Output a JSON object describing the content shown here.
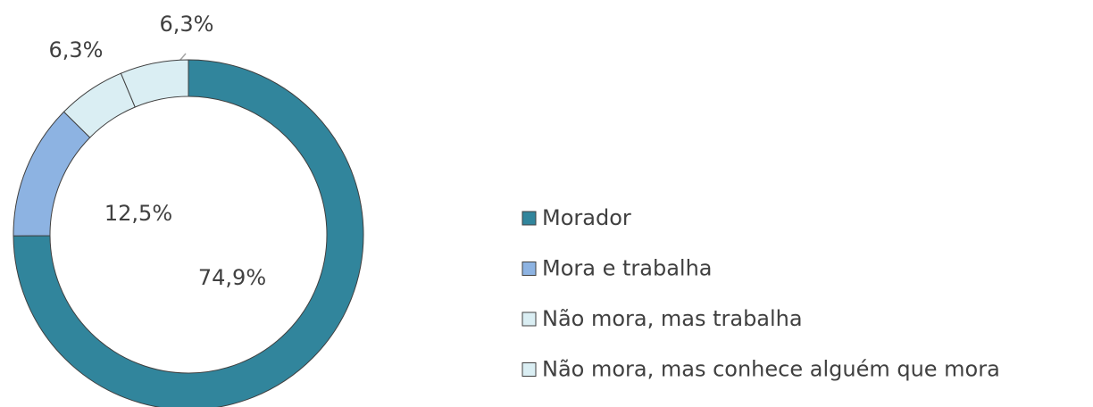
{
  "chart_data": {
    "type": "donut",
    "categories": [
      "Morador",
      "Mora e trabalha",
      "Não mora, mas trabalha",
      "Não mora, mas conhece alguém que mora"
    ],
    "values": [
      74.9,
      12.5,
      6.3,
      6.3
    ],
    "value_labels": [
      "74,9%",
      "12,5%",
      "6,3%",
      "6,3%"
    ],
    "colors": [
      "#31859c",
      "#8db3e2",
      "#daeef3",
      "#daeef3"
    ],
    "legend": "right"
  }
}
